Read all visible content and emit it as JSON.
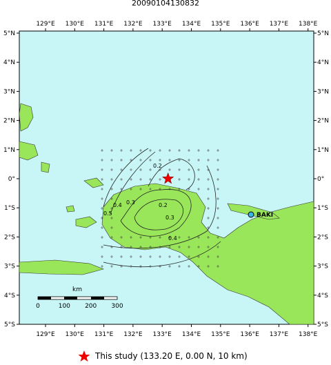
{
  "header": {
    "title": "20090104130832"
  },
  "map": {
    "lon_ticks": [
      {
        "value": 129,
        "label": "129°E"
      },
      {
        "value": 130,
        "label": "130°E"
      },
      {
        "value": 131,
        "label": "131°E"
      },
      {
        "value": 132,
        "label": "132°E"
      },
      {
        "value": 133,
        "label": "133°E"
      },
      {
        "value": 134,
        "label": "134°E"
      },
      {
        "value": 135,
        "label": "135°E"
      },
      {
        "value": 136,
        "label": "136°E"
      },
      {
        "value": 137,
        "label": "137°E"
      },
      {
        "value": 138,
        "label": "138°E"
      }
    ],
    "lat_ticks": [
      {
        "value": 5,
        "label": "5°N"
      },
      {
        "value": 4,
        "label": "4°N"
      },
      {
        "value": 3,
        "label": "3°N"
      },
      {
        "value": 2,
        "label": "2°N"
      },
      {
        "value": 1,
        "label": "1°N"
      },
      {
        "value": 0,
        "label": "0°"
      },
      {
        "value": -1,
        "label": "1°S"
      },
      {
        "value": -2,
        "label": "2°S"
      },
      {
        "value": -3,
        "label": "3°S"
      },
      {
        "value": -4,
        "label": "4°S"
      },
      {
        "value": -5,
        "label": "5°S"
      }
    ],
    "station": "BAKI",
    "contour_labels": [
      "0.2",
      "0.5",
      "0.4",
      "0.3",
      "0.2",
      "0.3",
      "0.4"
    ],
    "scale": {
      "unit": "km",
      "ticks": [
        0,
        100,
        200,
        300
      ]
    },
    "epicenter": {
      "lon": 133.2,
      "lat": 0.0
    }
  },
  "legend": {
    "label": "This study (133.20 E, 0.00 N, 10 km)"
  }
}
